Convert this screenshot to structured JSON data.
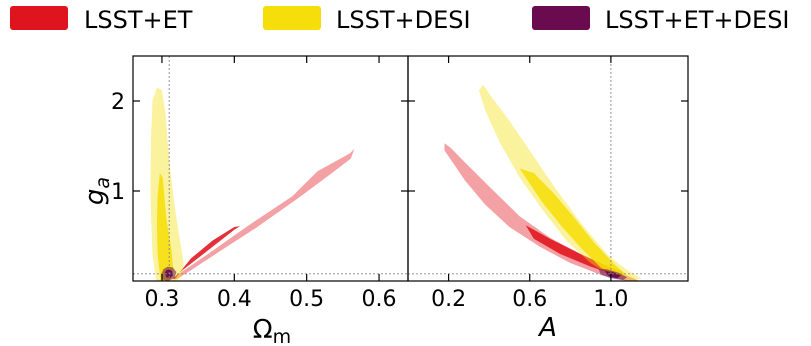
{
  "chart_data": {
    "type": "contour",
    "legend": {
      "placement": "top",
      "entries": [
        {
          "name": "LSST+ET",
          "color": "#e0141e"
        },
        {
          "name": "LSST+DESI",
          "color": "#f5de0a"
        },
        {
          "name": "LSST+ET+DESI",
          "color": "#6a0a4f"
        }
      ]
    },
    "shared_ylabel": "g",
    "shared_ylabel_sub": "a",
    "ylim": [
      0,
      2.5
    ],
    "yticks": [
      {
        "v": 1,
        "label": "1"
      },
      {
        "v": 2,
        "label": "2"
      }
    ],
    "fiducial_y": 0.08,
    "panels": [
      {
        "id": "omega",
        "xlabel": "Ω",
        "xlabel_sub": "m",
        "xlim": [
          0.26,
          0.64
        ],
        "xticks": [
          {
            "v": 0.3,
            "label": "0.3"
          },
          {
            "v": 0.4,
            "label": "0.4"
          },
          {
            "v": 0.5,
            "label": "0.5"
          },
          {
            "v": 0.6,
            "label": "0.6"
          }
        ],
        "fiducial_x": 0.31,
        "contours": [
          {
            "series": "LSST+ET",
            "level": "outer",
            "points": [
              [
                0.315,
                0.02
              ],
              [
                0.32,
                0.06
              ],
              [
                0.36,
                0.28
              ],
              [
                0.42,
                0.62
              ],
              [
                0.48,
                0.94
              ],
              [
                0.515,
                1.22
              ],
              [
                0.56,
                1.42
              ],
              [
                0.566,
                1.47
              ],
              [
                0.561,
                1.36
              ],
              [
                0.535,
                1.2
              ],
              [
                0.49,
                0.93
              ],
              [
                0.43,
                0.59
              ],
              [
                0.38,
                0.33
              ],
              [
                0.34,
                0.12
              ],
              [
                0.32,
                0.02
              ]
            ]
          },
          {
            "series": "LSST+ET",
            "level": "inner",
            "points": [
              [
                0.315,
                0.03
              ],
              [
                0.33,
                0.13
              ],
              [
                0.37,
                0.38
              ],
              [
                0.4,
                0.57
              ],
              [
                0.408,
                0.61
              ],
              [
                0.4,
                0.6
              ],
              [
                0.37,
                0.45
              ],
              [
                0.34,
                0.25
              ],
              [
                0.325,
                0.1
              ],
              [
                0.318,
                0.02
              ]
            ]
          },
          {
            "series": "LSST+DESI",
            "level": "outer",
            "points": [
              [
                0.285,
                1.6
              ],
              [
                0.287,
                2.0
              ],
              [
                0.293,
                2.15
              ],
              [
                0.3,
                2.12
              ],
              [
                0.305,
                1.85
              ],
              [
                0.308,
                1.55
              ],
              [
                0.312,
                1.2
              ],
              [
                0.318,
                0.8
              ],
              [
                0.325,
                0.45
              ],
              [
                0.33,
                0.2
              ],
              [
                0.328,
                0.05
              ],
              [
                0.32,
                0.0
              ],
              [
                0.3,
                0.0
              ],
              [
                0.292,
                0.0
              ],
              [
                0.287,
                0.3
              ],
              [
                0.285,
                0.7
              ],
              [
                0.284,
                1.1
              ]
            ]
          },
          {
            "series": "LSST+DESI",
            "level": "inner",
            "points": [
              [
                0.294,
                0.95
              ],
              [
                0.297,
                1.2
              ],
              [
                0.301,
                1.15
              ],
              [
                0.306,
                0.7
              ],
              [
                0.313,
                0.35
              ],
              [
                0.316,
                0.12
              ],
              [
                0.31,
                0.0
              ],
              [
                0.298,
                0.0
              ],
              [
                0.294,
                0.3
              ],
              [
                0.293,
                0.65
              ]
            ]
          },
          {
            "series": "LSST+ET+DESI",
            "level": "outer",
            "points": [
              [
                0.3,
                0.09
              ],
              [
                0.302,
                0.13
              ],
              [
                0.308,
                0.16
              ],
              [
                0.315,
                0.15
              ],
              [
                0.32,
                0.1
              ],
              [
                0.317,
                0.03
              ],
              [
                0.308,
                0.0
              ],
              [
                0.3,
                0.02
              ]
            ]
          },
          {
            "series": "LSST+ET+DESI",
            "level": "inner",
            "points": [
              [
                0.304,
                0.09
              ],
              [
                0.306,
                0.12
              ],
              [
                0.31,
                0.13
              ],
              [
                0.314,
                0.11
              ],
              [
                0.315,
                0.06
              ],
              [
                0.311,
                0.03
              ],
              [
                0.306,
                0.04
              ]
            ]
          }
        ]
      },
      {
        "id": "amp",
        "xlabel": "A",
        "xlabel_sub": "",
        "xlim": [
          0.0,
          1.38
        ],
        "xticks": [
          {
            "v": 0.2,
            "label": "0.2"
          },
          {
            "v": 0.6,
            "label": "0.6"
          },
          {
            "v": 1.0,
            "label": "1.0"
          }
        ],
        "fiducial_x": 1.0,
        "contours": [
          {
            "series": "LSST+ET",
            "level": "outer",
            "points": [
              [
                0.18,
                1.53
              ],
              [
                0.21,
                1.48
              ],
              [
                0.28,
                1.32
              ],
              [
                0.4,
                1.05
              ],
              [
                0.55,
                0.72
              ],
              [
                0.7,
                0.48
              ],
              [
                0.85,
                0.3
              ],
              [
                0.98,
                0.15
              ],
              [
                1.08,
                0.06
              ],
              [
                1.14,
                0.0
              ],
              [
                1.08,
                0.0
              ],
              [
                0.95,
                0.07
              ],
              [
                0.8,
                0.2
              ],
              [
                0.65,
                0.38
              ],
              [
                0.5,
                0.6
              ],
              [
                0.38,
                0.85
              ],
              [
                0.28,
                1.12
              ],
              [
                0.22,
                1.32
              ],
              [
                0.18,
                1.45
              ]
            ]
          },
          {
            "series": "LSST+ET",
            "level": "inner",
            "points": [
              [
                0.58,
                0.62
              ],
              [
                0.7,
                0.47
              ],
              [
                0.85,
                0.3
              ],
              [
                0.98,
                0.17
              ],
              [
                1.06,
                0.1
              ],
              [
                1.02,
                0.07
              ],
              [
                0.9,
                0.16
              ],
              [
                0.75,
                0.3
              ],
              [
                0.62,
                0.47
              ]
            ]
          },
          {
            "series": "LSST+DESI",
            "level": "outer",
            "points": [
              [
                0.35,
                2.12
              ],
              [
                0.37,
                2.18
              ],
              [
                0.41,
                2.05
              ],
              [
                0.5,
                1.78
              ],
              [
                0.6,
                1.45
              ],
              [
                0.72,
                1.05
              ],
              [
                0.85,
                0.65
              ],
              [
                0.98,
                0.3
              ],
              [
                1.08,
                0.12
              ],
              [
                1.15,
                0.03
              ],
              [
                1.1,
                0.0
              ],
              [
                1.0,
                0.06
              ],
              [
                0.9,
                0.2
              ],
              [
                0.78,
                0.45
              ],
              [
                0.66,
                0.8
              ],
              [
                0.55,
                1.15
              ],
              [
                0.45,
                1.55
              ],
              [
                0.38,
                1.9
              ]
            ]
          },
          {
            "series": "LSST+DESI",
            "level": "inner",
            "points": [
              [
                0.55,
                1.25
              ],
              [
                0.62,
                1.2
              ],
              [
                0.72,
                0.97
              ],
              [
                0.82,
                0.7
              ],
              [
                0.92,
                0.42
              ],
              [
                1.02,
                0.18
              ],
              [
                1.08,
                0.06
              ],
              [
                1.03,
                0.05
              ],
              [
                0.95,
                0.15
              ],
              [
                0.86,
                0.35
              ],
              [
                0.76,
                0.6
              ],
              [
                0.66,
                0.88
              ]
            ]
          },
          {
            "series": "LSST+ET+DESI",
            "level": "outer",
            "points": [
              [
                0.94,
                0.13
              ],
              [
                0.98,
                0.13
              ],
              [
                1.04,
                0.09
              ],
              [
                1.08,
                0.04
              ],
              [
                1.06,
                0.01
              ],
              [
                1.0,
                0.03
              ],
              [
                0.95,
                0.07
              ]
            ]
          },
          {
            "series": "LSST+ET+DESI",
            "level": "inner",
            "points": [
              [
                0.97,
                0.11
              ],
              [
                1.01,
                0.1
              ],
              [
                1.05,
                0.06
              ],
              [
                1.03,
                0.03
              ],
              [
                0.99,
                0.05
              ]
            ]
          }
        ]
      }
    ]
  }
}
